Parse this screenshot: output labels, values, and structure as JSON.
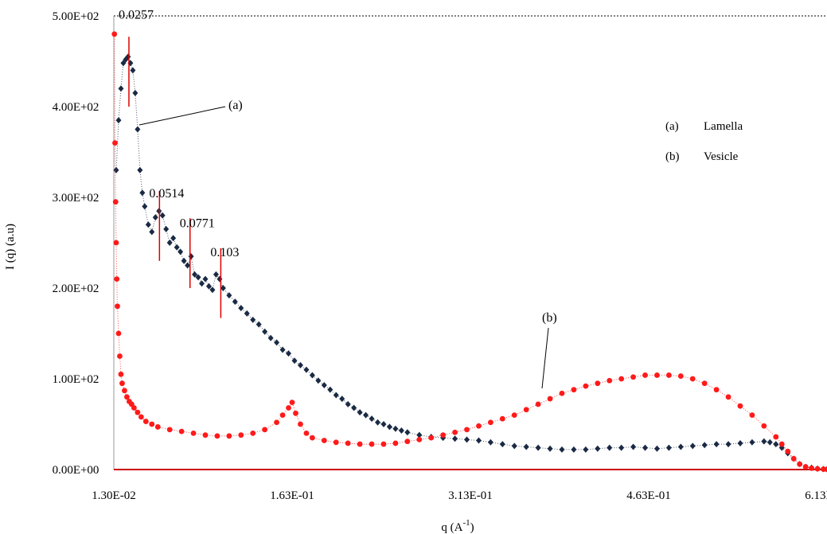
{
  "chart_data": {
    "type": "scatter",
    "title": "",
    "xlabel": "q (A",
    "xlabel_sup": "-1",
    "xlabel_close": ")",
    "ylabel": "I (q) (a.u)",
    "xlim": [
      0.013,
      0.613
    ],
    "ylim": [
      0,
      500
    ],
    "x_ticks": [
      "1.30E-02",
      "1.63E-01",
      "3.13E-01",
      "4.63E-01",
      "6.13E-01"
    ],
    "y_ticks": [
      "0.00E+00",
      "1.00E+02",
      "2.00E+02",
      "3.00E+02",
      "4.00E+02",
      "5.00E+02"
    ],
    "grid": false,
    "peak_labels": [
      {
        "text": "0.0257",
        "x": 0.0257
      },
      {
        "text": "0.0514",
        "x": 0.0514
      },
      {
        "text": "0.0771",
        "x": 0.0771
      },
      {
        "text": "0.103",
        "x": 0.103
      }
    ],
    "annotations": [
      {
        "text": "(a)"
      },
      {
        "text": "(b)"
      }
    ],
    "legend": [
      {
        "key": "(a)",
        "label": "Lamella"
      },
      {
        "key": "(b)",
        "label": "Vesicle"
      }
    ],
    "series": [
      {
        "key": "a",
        "color": "#1a2a44",
        "marker": "diamond",
        "points": [
          [
            0.015,
            330
          ],
          [
            0.017,
            385
          ],
          [
            0.019,
            420
          ],
          [
            0.021,
            448
          ],
          [
            0.023,
            452
          ],
          [
            0.025,
            455
          ],
          [
            0.027,
            448
          ],
          [
            0.029,
            440
          ],
          [
            0.031,
            415
          ],
          [
            0.033,
            375
          ],
          [
            0.035,
            330
          ],
          [
            0.037,
            305
          ],
          [
            0.039,
            290
          ],
          [
            0.042,
            270
          ],
          [
            0.045,
            262
          ],
          [
            0.048,
            278
          ],
          [
            0.051,
            285
          ],
          [
            0.054,
            280
          ],
          [
            0.057,
            265
          ],
          [
            0.06,
            250
          ],
          [
            0.063,
            255
          ],
          [
            0.066,
            245
          ],
          [
            0.069,
            240
          ],
          [
            0.072,
            230
          ],
          [
            0.075,
            225
          ],
          [
            0.078,
            235
          ],
          [
            0.081,
            215
          ],
          [
            0.084,
            212
          ],
          [
            0.087,
            205
          ],
          [
            0.09,
            210
          ],
          [
            0.093,
            202
          ],
          [
            0.096,
            198
          ],
          [
            0.099,
            215
          ],
          [
            0.102,
            210
          ],
          [
            0.105,
            200
          ],
          [
            0.11,
            192
          ],
          [
            0.115,
            185
          ],
          [
            0.12,
            178
          ],
          [
            0.125,
            172
          ],
          [
            0.13,
            165
          ],
          [
            0.135,
            160
          ],
          [
            0.14,
            152
          ],
          [
            0.145,
            145
          ],
          [
            0.15,
            140
          ],
          [
            0.155,
            132
          ],
          [
            0.16,
            128
          ],
          [
            0.165,
            120
          ],
          [
            0.17,
            115
          ],
          [
            0.175,
            110
          ],
          [
            0.18,
            104
          ],
          [
            0.185,
            98
          ],
          [
            0.19,
            93
          ],
          [
            0.195,
            88
          ],
          [
            0.2,
            82
          ],
          [
            0.205,
            78
          ],
          [
            0.21,
            72
          ],
          [
            0.215,
            68
          ],
          [
            0.22,
            63
          ],
          [
            0.225,
            60
          ],
          [
            0.23,
            56
          ],
          [
            0.235,
            52
          ],
          [
            0.24,
            50
          ],
          [
            0.245,
            47
          ],
          [
            0.25,
            45
          ],
          [
            0.255,
            43
          ],
          [
            0.26,
            41
          ],
          [
            0.27,
            38
          ],
          [
            0.28,
            36
          ],
          [
            0.29,
            35
          ],
          [
            0.3,
            34
          ],
          [
            0.31,
            33
          ],
          [
            0.32,
            32
          ],
          [
            0.33,
            30
          ],
          [
            0.34,
            28
          ],
          [
            0.35,
            26
          ],
          [
            0.36,
            25
          ],
          [
            0.37,
            24
          ],
          [
            0.38,
            23
          ],
          [
            0.39,
            22
          ],
          [
            0.4,
            22
          ],
          [
            0.41,
            22
          ],
          [
            0.42,
            23
          ],
          [
            0.43,
            24
          ],
          [
            0.44,
            24
          ],
          [
            0.45,
            25
          ],
          [
            0.46,
            24
          ],
          [
            0.47,
            23
          ],
          [
            0.48,
            24
          ],
          [
            0.49,
            25
          ],
          [
            0.5,
            26
          ],
          [
            0.51,
            27
          ],
          [
            0.52,
            28
          ],
          [
            0.53,
            28
          ],
          [
            0.54,
            29
          ],
          [
            0.55,
            30
          ],
          [
            0.56,
            31
          ],
          [
            0.565,
            30
          ],
          [
            0.57,
            28
          ],
          [
            0.575,
            24
          ],
          [
            0.58,
            18
          ],
          [
            0.585,
            12
          ],
          [
            0.59,
            6
          ],
          [
            0.595,
            3
          ],
          [
            0.6,
            2
          ],
          [
            0.605,
            1
          ],
          [
            0.61,
            0.5
          ],
          [
            0.613,
            0.3
          ]
        ]
      },
      {
        "key": "b",
        "color": "#ff1a1a",
        "marker": "circle",
        "points": [
          [
            0.0135,
            480
          ],
          [
            0.014,
            360
          ],
          [
            0.0145,
            295
          ],
          [
            0.015,
            250
          ],
          [
            0.0155,
            210
          ],
          [
            0.016,
            180
          ],
          [
            0.017,
            150
          ],
          [
            0.018,
            125
          ],
          [
            0.019,
            105
          ],
          [
            0.02,
            95
          ],
          [
            0.022,
            87
          ],
          [
            0.024,
            80
          ],
          [
            0.026,
            75
          ],
          [
            0.028,
            72
          ],
          [
            0.03,
            68
          ],
          [
            0.033,
            63
          ],
          [
            0.036,
            58
          ],
          [
            0.04,
            53
          ],
          [
            0.045,
            50
          ],
          [
            0.05,
            47
          ],
          [
            0.06,
            44
          ],
          [
            0.07,
            42
          ],
          [
            0.08,
            40
          ],
          [
            0.09,
            38
          ],
          [
            0.1,
            37
          ],
          [
            0.11,
            37
          ],
          [
            0.12,
            38
          ],
          [
            0.13,
            40
          ],
          [
            0.14,
            44
          ],
          [
            0.15,
            52
          ],
          [
            0.155,
            60
          ],
          [
            0.16,
            68
          ],
          [
            0.163,
            74
          ],
          [
            0.166,
            62
          ],
          [
            0.17,
            50
          ],
          [
            0.175,
            40
          ],
          [
            0.18,
            35
          ],
          [
            0.19,
            32
          ],
          [
            0.2,
            30
          ],
          [
            0.21,
            29
          ],
          [
            0.22,
            28
          ],
          [
            0.23,
            28
          ],
          [
            0.24,
            28
          ],
          [
            0.25,
            29
          ],
          [
            0.26,
            31
          ],
          [
            0.27,
            33
          ],
          [
            0.28,
            35
          ],
          [
            0.29,
            38
          ],
          [
            0.3,
            41
          ],
          [
            0.31,
            44
          ],
          [
            0.32,
            48
          ],
          [
            0.33,
            52
          ],
          [
            0.34,
            56
          ],
          [
            0.35,
            60
          ],
          [
            0.36,
            66
          ],
          [
            0.37,
            72
          ],
          [
            0.38,
            78
          ],
          [
            0.39,
            84
          ],
          [
            0.4,
            88
          ],
          [
            0.41,
            92
          ],
          [
            0.42,
            95
          ],
          [
            0.43,
            98
          ],
          [
            0.44,
            100
          ],
          [
            0.45,
            102
          ],
          [
            0.46,
            104
          ],
          [
            0.47,
            104
          ],
          [
            0.48,
            104
          ],
          [
            0.49,
            103
          ],
          [
            0.5,
            100
          ],
          [
            0.51,
            95
          ],
          [
            0.52,
            88
          ],
          [
            0.53,
            80
          ],
          [
            0.54,
            70
          ],
          [
            0.55,
            60
          ],
          [
            0.56,
            48
          ],
          [
            0.57,
            36
          ],
          [
            0.575,
            28
          ],
          [
            0.58,
            20
          ],
          [
            0.585,
            12
          ],
          [
            0.59,
            6
          ],
          [
            0.595,
            3
          ],
          [
            0.6,
            1.5
          ],
          [
            0.605,
            0.8
          ],
          [
            0.61,
            0.4
          ],
          [
            0.613,
            0.2
          ]
        ]
      }
    ]
  }
}
